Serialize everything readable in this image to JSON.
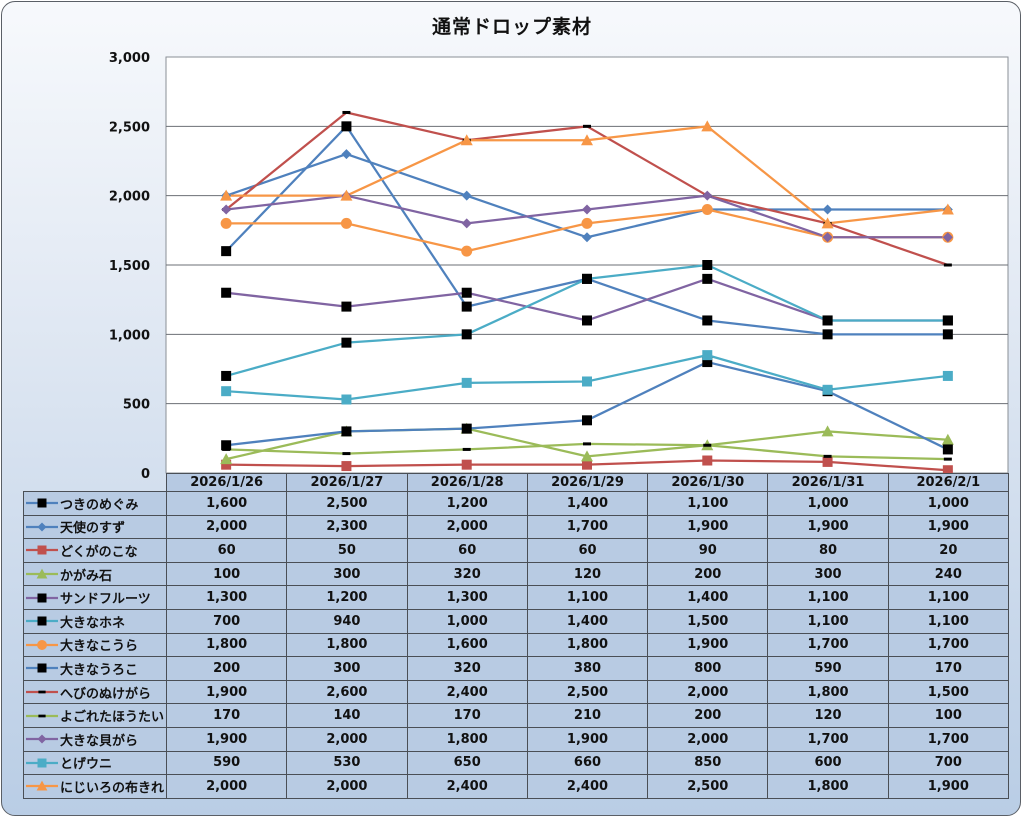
{
  "chart_data": {
    "type": "line",
    "title": "通常ドロップ素材",
    "xlabel": "",
    "ylabel": "",
    "ylim": [
      0,
      3000
    ],
    "yticks": [
      0,
      500,
      1000,
      1500,
      2000,
      2500,
      3000
    ],
    "ytick_labels": [
      "0",
      "500",
      "1,000",
      "1,500",
      "2,000",
      "2,500",
      "3,000"
    ],
    "grid": true,
    "legend": "data-table-bottom",
    "categories": [
      "2026/1/26",
      "2026/1/27",
      "2026/1/28",
      "2026/1/29",
      "2026/1/30",
      "2026/1/31",
      "2026/2/1"
    ],
    "series": [
      {
        "name": "つきのめぐみ",
        "color": "#4f81bd",
        "marker": "square-black",
        "values": [
          1600,
          2500,
          1200,
          1400,
          1100,
          1000,
          1000
        ],
        "labels": [
          "1,600",
          "2,500",
          "1,200",
          "1,400",
          "1,100",
          "1,000",
          "1,000"
        ]
      },
      {
        "name": "天使のすず",
        "color": "#4f81bd",
        "marker": "diamond",
        "values": [
          2000,
          2300,
          2000,
          1700,
          1900,
          1900,
          1900
        ],
        "labels": [
          "2,000",
          "2,300",
          "2,000",
          "1,700",
          "1,900",
          "1,900",
          "1,900"
        ]
      },
      {
        "name": "どくがのこな",
        "color": "#c0504d",
        "marker": "square",
        "values": [
          60,
          50,
          60,
          60,
          90,
          80,
          20
        ],
        "labels": [
          "60",
          "50",
          "60",
          "60",
          "90",
          "80",
          "20"
        ]
      },
      {
        "name": "かがみ石",
        "color": "#9bbb59",
        "marker": "triangle",
        "values": [
          100,
          300,
          320,
          120,
          200,
          300,
          240
        ],
        "labels": [
          "100",
          "300",
          "320",
          "120",
          "200",
          "300",
          "240"
        ]
      },
      {
        "name": "サンドフルーツ",
        "color": "#8064a2",
        "marker": "square-black",
        "values": [
          1300,
          1200,
          1300,
          1100,
          1400,
          1100,
          1100
        ],
        "labels": [
          "1,300",
          "1,200",
          "1,300",
          "1,100",
          "1,400",
          "1,100",
          "1,100"
        ]
      },
      {
        "name": "大きなホネ",
        "color": "#4bacc6",
        "marker": "square-black",
        "values": [
          700,
          940,
          1000,
          1400,
          1500,
          1100,
          1100
        ],
        "labels": [
          "700",
          "940",
          "1,000",
          "1,400",
          "1,500",
          "1,100",
          "1,100"
        ]
      },
      {
        "name": "大きなこうら",
        "color": "#f79646",
        "marker": "circle",
        "values": [
          1800,
          1800,
          1600,
          1800,
          1900,
          1700,
          1700
        ],
        "labels": [
          "1,800",
          "1,800",
          "1,600",
          "1,800",
          "1,900",
          "1,700",
          "1,700"
        ]
      },
      {
        "name": "大きなうろこ",
        "color": "#4f81bd",
        "marker": "square-black",
        "values": [
          200,
          300,
          320,
          380,
          800,
          590,
          170
        ],
        "labels": [
          "200",
          "300",
          "320",
          "380",
          "800",
          "590",
          "170"
        ]
      },
      {
        "name": "へびのぬけがら",
        "color": "#c0504d",
        "marker": "dash-black",
        "values": [
          1900,
          2600,
          2400,
          2500,
          2000,
          1800,
          1500
        ],
        "labels": [
          "1,900",
          "2,600",
          "2,400",
          "2,500",
          "2,000",
          "1,800",
          "1,500"
        ]
      },
      {
        "name": "よごれたほうたい",
        "color": "#9bbb59",
        "marker": "dash-black",
        "values": [
          170,
          140,
          170,
          210,
          200,
          120,
          100
        ],
        "labels": [
          "170",
          "140",
          "170",
          "210",
          "200",
          "120",
          "100"
        ]
      },
      {
        "name": "大きな貝がら",
        "color": "#8064a2",
        "marker": "diamond",
        "values": [
          1900,
          2000,
          1800,
          1900,
          2000,
          1700,
          1700
        ],
        "labels": [
          "1,900",
          "2,000",
          "1,800",
          "1,900",
          "2,000",
          "1,700",
          "1,700"
        ]
      },
      {
        "name": "とげウニ",
        "color": "#4bacc6",
        "marker": "square",
        "values": [
          590,
          530,
          650,
          660,
          850,
          600,
          700
        ],
        "labels": [
          "590",
          "530",
          "650",
          "660",
          "850",
          "600",
          "700"
        ]
      },
      {
        "name": "にじいろの布きれ",
        "color": "#f79646",
        "marker": "triangle",
        "values": [
          2000,
          2000,
          2400,
          2400,
          2500,
          1800,
          1900
        ],
        "labels": [
          "2,000",
          "2,000",
          "2,400",
          "2,400",
          "2,500",
          "1,800",
          "1,900"
        ]
      }
    ]
  }
}
